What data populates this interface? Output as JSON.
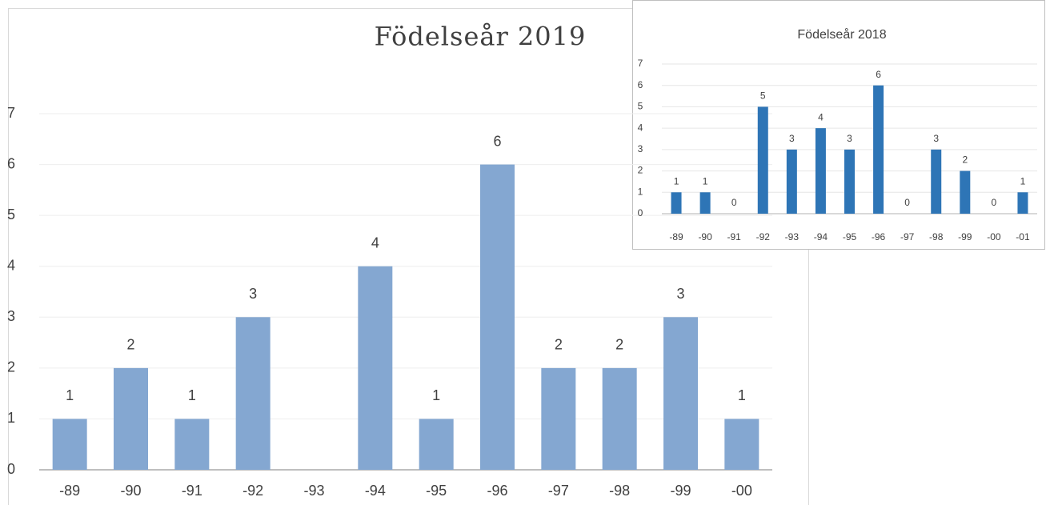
{
  "chart_data": [
    {
      "type": "bar",
      "title": "Födelseår 2019",
      "categories": [
        "-89",
        "-90",
        "-91",
        "-92",
        "-93",
        "-94",
        "-95",
        "-96",
        "-97",
        "-98",
        "-99",
        "-00"
      ],
      "values": [
        1,
        2,
        1,
        3,
        null,
        4,
        1,
        6,
        2,
        2,
        3,
        1
      ],
      "color": "#84a7d1",
      "ylim": [
        0,
        7
      ],
      "yticks": [
        0,
        1,
        2,
        3,
        4,
        5,
        6,
        7
      ],
      "grid": true
    },
    {
      "type": "bar",
      "title": "Födelseår 2018",
      "categories": [
        "-89",
        "-90",
        "-91",
        "-92",
        "-93",
        "-94",
        "-95",
        "-96",
        "-97",
        "-98",
        "-99",
        "-00",
        "-01"
      ],
      "values": [
        1,
        1,
        0,
        5,
        3,
        4,
        3,
        6,
        0,
        3,
        2,
        0,
        1
      ],
      "color": "#2e75b6",
      "ylim": [
        0,
        7
      ],
      "yticks": [
        0,
        1,
        2,
        3,
        4,
        5,
        6,
        7
      ],
      "grid": true
    }
  ]
}
